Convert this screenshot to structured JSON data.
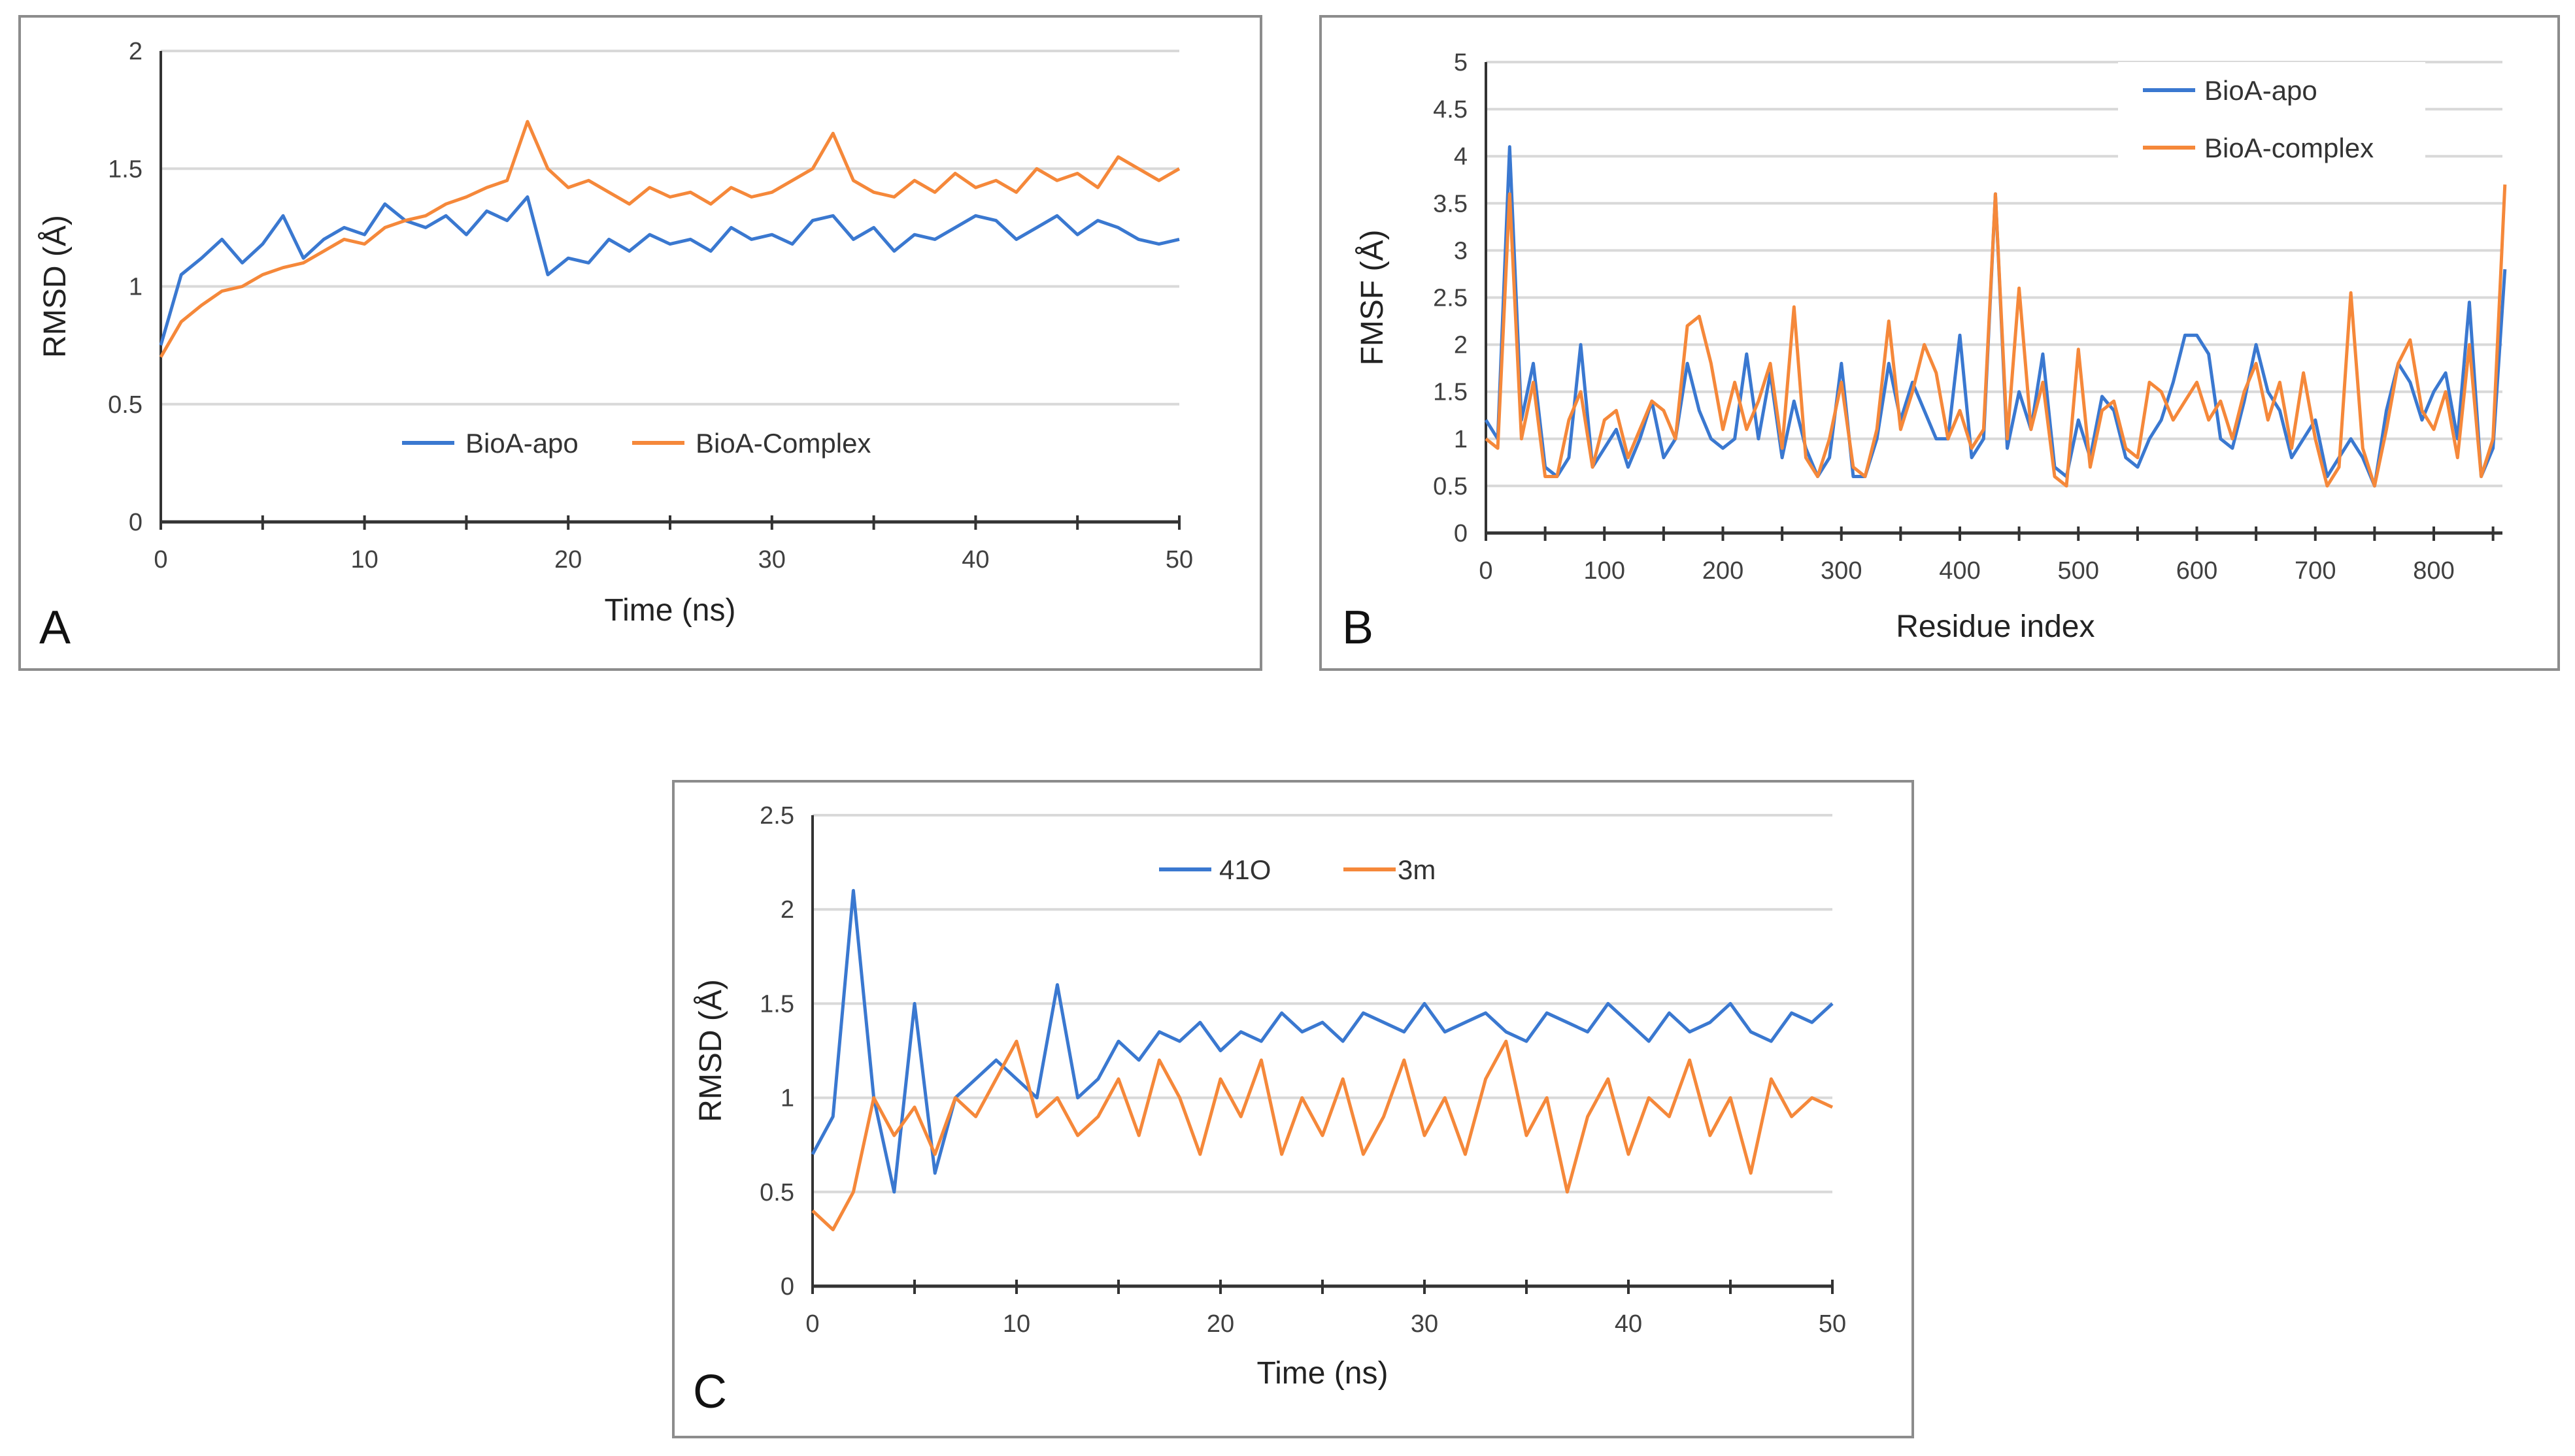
{
  "colors": {
    "blue": "#3a78d0",
    "orange": "#f5883a",
    "grid": "#d9d9d9"
  },
  "chart_data": [
    {
      "panel": "A",
      "type": "line",
      "xlabel": "Time (ns)",
      "ylabel": "RMSD (Å)",
      "xlim": [
        0,
        50
      ],
      "ylim": [
        0,
        2
      ],
      "xticks": [
        0,
        10,
        20,
        30,
        40,
        50
      ],
      "yticks": [
        0,
        0.5,
        1,
        1.5,
        2
      ],
      "ytick_labels": [
        "0",
        "0.5",
        "1",
        "1.5",
        "2"
      ],
      "legend_placement": "center",
      "x_start": 0,
      "x_step": 1,
      "series": [
        {
          "name": "BioA-apo",
          "color": "#3a78d0",
          "values": [
            0.75,
            1.05,
            1.12,
            1.2,
            1.1,
            1.18,
            1.3,
            1.12,
            1.2,
            1.25,
            1.22,
            1.35,
            1.28,
            1.25,
            1.3,
            1.22,
            1.32,
            1.28,
            1.38,
            1.05,
            1.12,
            1.1,
            1.2,
            1.15,
            1.22,
            1.18,
            1.2,
            1.15,
            1.25,
            1.2,
            1.22,
            1.18,
            1.28,
            1.3,
            1.2,
            1.25,
            1.15,
            1.22,
            1.2,
            1.25,
            1.3,
            1.28,
            1.2,
            1.25,
            1.3,
            1.22,
            1.28,
            1.25,
            1.2,
            1.18,
            1.2
          ]
        },
        {
          "name": "BioA-Complex",
          "color": "#f5883a",
          "values": [
            0.7,
            0.85,
            0.92,
            0.98,
            1.0,
            1.05,
            1.08,
            1.1,
            1.15,
            1.2,
            1.18,
            1.25,
            1.28,
            1.3,
            1.35,
            1.38,
            1.42,
            1.45,
            1.7,
            1.5,
            1.42,
            1.45,
            1.4,
            1.35,
            1.42,
            1.38,
            1.4,
            1.35,
            1.42,
            1.38,
            1.4,
            1.45,
            1.5,
            1.65,
            1.45,
            1.4,
            1.38,
            1.45,
            1.4,
            1.48,
            1.42,
            1.45,
            1.4,
            1.5,
            1.45,
            1.48,
            1.42,
            1.55,
            1.5,
            1.45,
            1.5
          ]
        }
      ]
    },
    {
      "panel": "B",
      "type": "line",
      "xlabel": "Residue index",
      "ylabel": "FMSF (Å)",
      "xlim": [
        0,
        860
      ],
      "ylim": [
        0,
        5
      ],
      "xticks": [
        0,
        100,
        200,
        300,
        400,
        500,
        600,
        700,
        800
      ],
      "yticks": [
        0,
        0.5,
        1,
        1.5,
        2,
        2.5,
        3,
        3.5,
        4,
        4.5,
        5
      ],
      "ytick_labels": [
        "0",
        "0.5",
        "1",
        "1.5",
        "2",
        "2.5",
        "3",
        "3.5",
        "4",
        "4.5",
        "5"
      ],
      "legend_placement": "top-right",
      "x_start": 0,
      "x_step": 10,
      "series": [
        {
          "name": "BioA-apo",
          "color": "#3a78d0",
          "values": [
            1.2,
            1.0,
            4.1,
            1.2,
            1.8,
            0.7,
            0.6,
            0.8,
            2.0,
            0.7,
            0.9,
            1.1,
            0.7,
            1.0,
            1.4,
            0.8,
            1.0,
            1.8,
            1.3,
            1.0,
            0.9,
            1.0,
            1.9,
            1.0,
            1.7,
            0.8,
            1.4,
            0.9,
            0.6,
            0.8,
            1.8,
            0.6,
            0.6,
            1.0,
            1.8,
            1.2,
            1.6,
            1.3,
            1.0,
            1.0,
            2.1,
            0.8,
            1.0,
            3.6,
            0.9,
            1.5,
            1.1,
            1.9,
            0.7,
            0.6,
            1.2,
            0.8,
            1.45,
            1.3,
            0.8,
            0.7,
            1.0,
            1.2,
            1.6,
            2.1,
            2.1,
            1.9,
            1.0,
            0.9,
            1.4,
            2.0,
            1.5,
            1.3,
            0.8,
            1.0,
            1.2,
            0.6,
            0.8,
            1.0,
            0.8,
            0.5,
            1.3,
            1.8,
            1.6,
            1.2,
            1.5,
            1.7,
            1.0,
            2.45,
            0.6,
            0.9,
            2.8
          ]
        },
        {
          "name": "BioA-complex",
          "color": "#f5883a",
          "values": [
            1.0,
            0.9,
            3.6,
            1.0,
            1.6,
            0.6,
            0.6,
            1.2,
            1.5,
            0.7,
            1.2,
            1.3,
            0.8,
            1.1,
            1.4,
            1.3,
            1.0,
            2.2,
            2.3,
            1.8,
            1.1,
            1.6,
            1.1,
            1.4,
            1.8,
            0.9,
            2.4,
            0.8,
            0.6,
            1.0,
            1.6,
            0.7,
            0.6,
            1.1,
            2.25,
            1.1,
            1.5,
            2.0,
            1.7,
            1.0,
            1.3,
            0.9,
            1.1,
            3.6,
            1.0,
            2.6,
            1.1,
            1.6,
            0.6,
            0.5,
            1.95,
            0.7,
            1.3,
            1.4,
            0.9,
            0.8,
            1.6,
            1.5,
            1.2,
            1.4,
            1.6,
            1.2,
            1.4,
            1.0,
            1.5,
            1.8,
            1.2,
            1.6,
            0.9,
            1.7,
            1.0,
            0.5,
            0.7,
            2.55,
            0.9,
            0.5,
            1.1,
            1.8,
            2.05,
            1.3,
            1.1,
            1.5,
            0.8,
            2.0,
            0.6,
            1.0,
            3.7
          ]
        }
      ]
    },
    {
      "panel": "C",
      "type": "line",
      "xlabel": "Time (ns)",
      "ylabel": "RMSD (Å)",
      "xlim": [
        0,
        50
      ],
      "ylim": [
        0,
        2.5
      ],
      "xticks": [
        0,
        10,
        20,
        30,
        40,
        50
      ],
      "yticks": [
        0,
        0.5,
        1,
        1.5,
        2,
        2.5
      ],
      "ytick_labels": [
        "0",
        "0.5",
        "1",
        "1.5",
        "2",
        "2.5"
      ],
      "legend_placement": "top-center",
      "x_start": 0,
      "x_step": 1,
      "series": [
        {
          "name": "41O",
          "color": "#3a78d0",
          "values": [
            0.7,
            0.9,
            2.1,
            1.0,
            0.5,
            1.5,
            0.6,
            1.0,
            1.1,
            1.2,
            1.1,
            1.0,
            1.6,
            1.0,
            1.1,
            1.3,
            1.2,
            1.35,
            1.3,
            1.4,
            1.25,
            1.35,
            1.3,
            1.45,
            1.35,
            1.4,
            1.3,
            1.45,
            1.4,
            1.35,
            1.5,
            1.35,
            1.4,
            1.45,
            1.35,
            1.3,
            1.45,
            1.4,
            1.35,
            1.5,
            1.4,
            1.3,
            1.45,
            1.35,
            1.4,
            1.5,
            1.35,
            1.3,
            1.45,
            1.4,
            1.5
          ]
        },
        {
          "name": "3m",
          "color": "#f5883a",
          "values": [
            0.4,
            0.3,
            0.5,
            1.0,
            0.8,
            0.95,
            0.7,
            1.0,
            0.9,
            1.1,
            1.3,
            0.9,
            1.0,
            0.8,
            0.9,
            1.1,
            0.8,
            1.2,
            1.0,
            0.7,
            1.1,
            0.9,
            1.2,
            0.7,
            1.0,
            0.8,
            1.1,
            0.7,
            0.9,
            1.2,
            0.8,
            1.0,
            0.7,
            1.1,
            1.3,
            0.8,
            1.0,
            0.5,
            0.9,
            1.1,
            0.7,
            1.0,
            0.9,
            1.2,
            0.8,
            1.0,
            0.6,
            1.1,
            0.9,
            1.0,
            0.95
          ]
        }
      ]
    }
  ]
}
